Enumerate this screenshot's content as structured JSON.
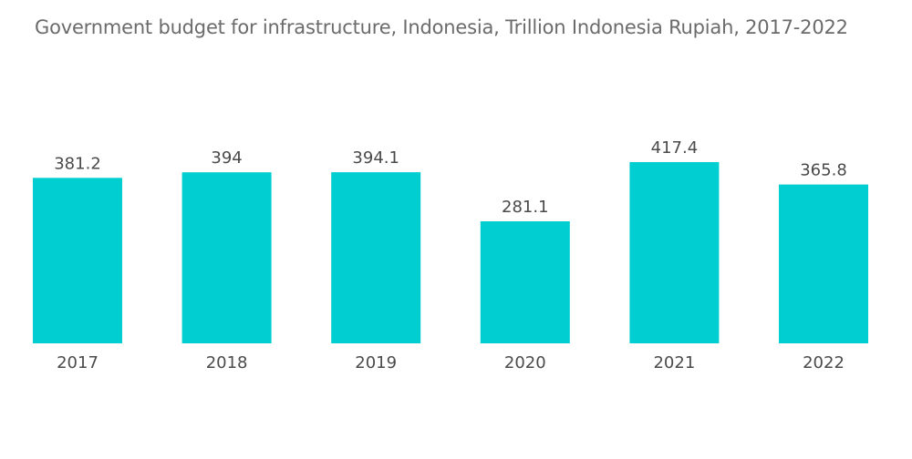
{
  "chart_data": {
    "type": "bar",
    "title": "Government budget for infrastructure, Indonesia, Trillion Indonesia Rupiah, 2017-2022",
    "categories": [
      "2017",
      "2018",
      "2019",
      "2020",
      "2021",
      "2022"
    ],
    "values": [
      381.2,
      394,
      394.1,
      281.1,
      417.4,
      365.8
    ],
    "value_labels": [
      "381.2",
      "394",
      "394.1",
      "281.1",
      "417.4",
      "365.8"
    ],
    "xlabel": "",
    "ylabel": "",
    "ylim": [
      0,
      417.4
    ],
    "grid": false,
    "legend": "none",
    "bar_color": "#00CED1"
  }
}
